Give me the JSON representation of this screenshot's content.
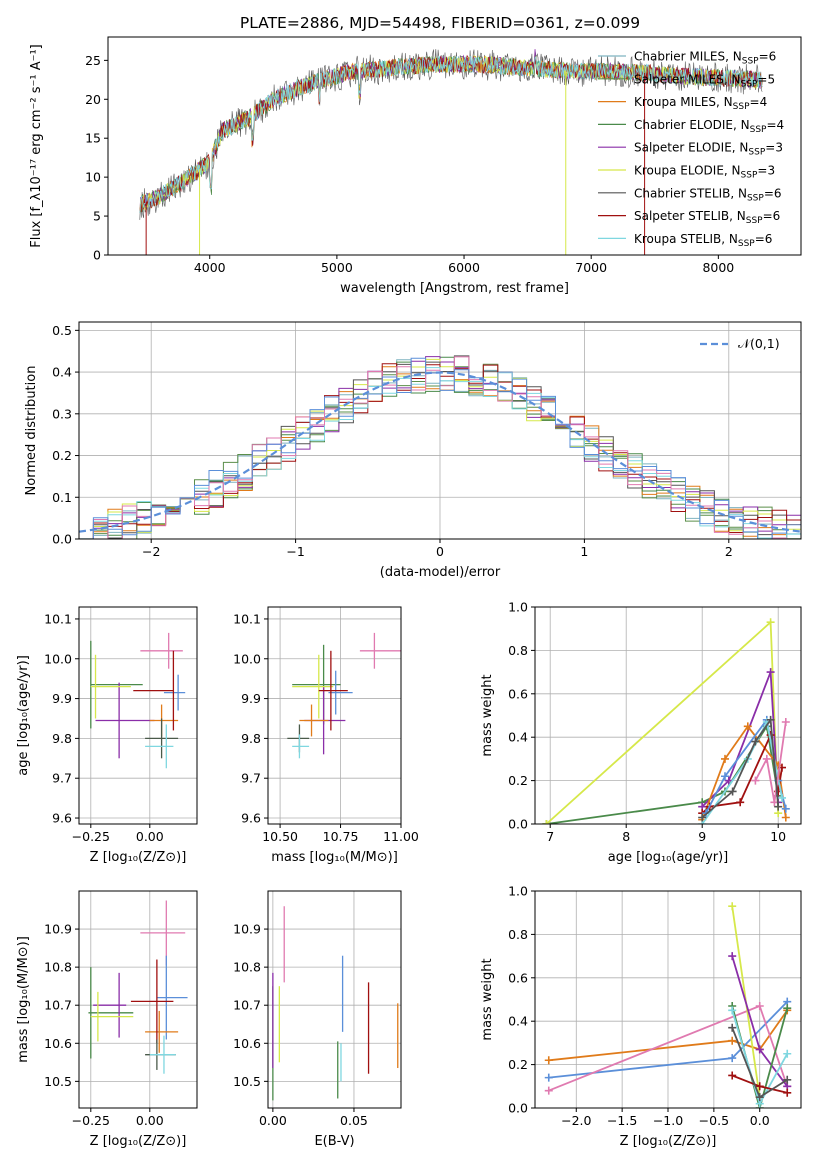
{
  "title": "PLATE=2886, MJD=54498, FIBERID=0361, z=0.099",
  "colors": {
    "chabrier_miles": "#7fb3c0",
    "salpeter_miles": "#5b8f4a",
    "kroupa_miles": "#e07b1a",
    "chabrier_elodie": "#4a8a4a",
    "salpeter_elodie": "#8a2ea8",
    "kroupa_elodie": "#d6e84a",
    "chabrier_stelib": "#555555",
    "salpeter_stelib": "#a01010",
    "kroupa_stelib": "#7fd7e0",
    "gaussian": "#5b8fd9",
    "pink": "#e07ab0",
    "blue": "#5b8fd9"
  },
  "chart_data": [
    {
      "id": "spectrum",
      "type": "line",
      "xlabel": "wavelength [Angstrom, rest frame]",
      "ylabel": "Flux [f_λ10⁻¹⁷ erg cm⁻² s⁻¹ A⁻¹]",
      "xlim": [
        3200,
        8650
      ],
      "ylim": [
        0,
        28
      ],
      "xticks": [
        "4000",
        "5000",
        "6000",
        "7000",
        "8000"
      ],
      "yticks": [
        "0",
        "5",
        "10",
        "15",
        "20",
        "25"
      ],
      "legend": [
        {
          "label": "Chabrier MILES, N",
          "sub": "SSP",
          "tail": "=6",
          "color": "#7fb3c0"
        },
        {
          "label": "Salpeter MILES, N",
          "sub": "SSP",
          "tail": "=5",
          "color": "#5b8f4a"
        },
        {
          "label": "Kroupa MILES, N",
          "sub": "SSP",
          "tail": "=4",
          "color": "#e07b1a"
        },
        {
          "label": "Chabrier ELODIE, N",
          "sub": "SSP",
          "tail": "=4",
          "color": "#4a8a4a"
        },
        {
          "label": "Salpeter ELODIE, N",
          "sub": "SSP",
          "tail": "=3",
          "color": "#8a2ea8"
        },
        {
          "label": "Kroupa ELODIE, N",
          "sub": "SSP",
          "tail": "=3",
          "color": "#d6e84a"
        },
        {
          "label": "Chabrier STELIB, N",
          "sub": "SSP",
          "tail": "=6",
          "color": "#555555"
        },
        {
          "label": "Salpeter STELIB, N",
          "sub": "SSP",
          "tail": "=6",
          "color": "#a01010"
        },
        {
          "label": "Kroupa STELIB, N",
          "sub": "SSP",
          "tail": "=6",
          "color": "#7fd7e0"
        }
      ],
      "continuum": [
        [
          3450,
          6.5
        ],
        [
          3600,
          7.5
        ],
        [
          3800,
          9.5
        ],
        [
          4000,
          12
        ],
        [
          4100,
          16
        ],
        [
          4300,
          17.5
        ],
        [
          4500,
          20
        ],
        [
          4700,
          21.5
        ],
        [
          4900,
          22.5
        ],
        [
          5100,
          23.5
        ],
        [
          5300,
          23.8
        ],
        [
          5500,
          24.2
        ],
        [
          5700,
          24.4
        ],
        [
          5900,
          24.5
        ],
        [
          6100,
          24.5
        ],
        [
          6300,
          24.3
        ],
        [
          6500,
          24.0
        ],
        [
          6700,
          23.8
        ],
        [
          6900,
          23.6
        ],
        [
          7100,
          23.6
        ],
        [
          7300,
          23.5
        ],
        [
          7500,
          23.3
        ],
        [
          7700,
          23.0
        ],
        [
          7900,
          22.8
        ],
        [
          8100,
          22.7
        ],
        [
          8300,
          22.5
        ],
        [
          8350,
          22.4
        ]
      ]
    },
    {
      "id": "residual-hist",
      "type": "histogram",
      "xlabel": "(data-model)/error",
      "ylabel": "Normed distribution",
      "xlim": [
        -2.5,
        2.5
      ],
      "ylim": [
        0,
        0.52
      ],
      "xticks": [
        "−2",
        "−1",
        "0",
        "1",
        "2"
      ],
      "yticks": [
        "0.0",
        "0.1",
        "0.2",
        "0.3",
        "0.4",
        "0.5"
      ],
      "legend": "𝒩(0,1)",
      "sigma": 1
    },
    {
      "id": "age-vs-Z",
      "type": "scatter",
      "xlabel": "Z [log₁₀(Z/Z⊙)]",
      "ylabel": "age  [log₁₀(age/yr)]",
      "xlim": [
        -0.3,
        0.2
      ],
      "ylim": [
        9.585,
        10.13
      ],
      "xticks": [
        "−0.25",
        "0.00"
      ],
      "yticks": [
        "9.6",
        "9.7",
        "9.8",
        "9.9",
        "10.0",
        "10.1"
      ],
      "points": [
        {
          "x": -0.25,
          "y": 9.935,
          "dx": 0.0,
          "dy": 0.22,
          "c": "#4a8a4a",
          "hx": [
            -0.25,
            -0.03
          ]
        },
        {
          "x": -0.13,
          "y": 9.845,
          "dx": 0.0,
          "dy": 0.19,
          "c": "#8a2ea8",
          "hx": [
            -0.23,
            0.02
          ]
        },
        {
          "x": -0.23,
          "y": 9.93,
          "dx": 0,
          "dy": 0.16,
          "c": "#d6e84a",
          "hx": [
            -0.25,
            -0.08
          ]
        },
        {
          "x": 0.08,
          "y": 10.02,
          "dx": 0,
          "dy": 0.09,
          "c": "#e07ab0",
          "hx": [
            -0.04,
            0.14
          ]
        },
        {
          "x": 0.12,
          "y": 9.915,
          "dx": 0,
          "dy": 0.09,
          "c": "#5b8fd9",
          "hx": [
            0.06,
            0.15
          ]
        },
        {
          "x": 0.05,
          "y": 9.845,
          "dx": 0,
          "dy": 0.08,
          "c": "#e07b1a",
          "hx": [
            0.0,
            0.12
          ]
        },
        {
          "x": 0.1,
          "y": 9.92,
          "dx": 0,
          "dy": 0.2,
          "c": "#a01010",
          "hx": [
            -0.07,
            0.1
          ]
        },
        {
          "x": 0.05,
          "y": 9.8,
          "dx": 0,
          "dy": 0.1,
          "c": "#4a5a4a",
          "hx": [
            -0.02,
            0.12
          ]
        },
        {
          "x": 0.07,
          "y": 9.78,
          "dx": 0,
          "dy": 0.11,
          "c": "#7fd7e0",
          "hx": [
            -0.02,
            0.1
          ]
        }
      ]
    },
    {
      "id": "age-vs-mass",
      "type": "scatter",
      "xlabel": "mass [log₁₀(M/M⊙)]",
      "ylim": [
        9.585,
        10.13
      ],
      "xlim": [
        10.45,
        11.0
      ],
      "xticks": [
        "10.50",
        "10.75",
        "11.00"
      ],
      "yticks": [
        "9.6",
        "9.7",
        "9.8",
        "9.9",
        "10.0",
        "10.1"
      ],
      "points": [
        {
          "x": 10.68,
          "y": 9.935,
          "dy": 0.2,
          "c": "#4a8a4a",
          "hx": [
            10.55,
            10.75
          ]
        },
        {
          "x": 10.68,
          "y": 9.845,
          "dy": 0.17,
          "c": "#8a2ea8",
          "hx": [
            10.6,
            10.77
          ]
        },
        {
          "x": 10.66,
          "y": 9.93,
          "dy": 0.16,
          "c": "#d6e84a",
          "hx": [
            10.55,
            10.72
          ]
        },
        {
          "x": 10.89,
          "y": 10.02,
          "dy": 0.09,
          "c": "#e07ab0",
          "hx": [
            10.83,
            11.0
          ]
        },
        {
          "x": 10.73,
          "y": 9.915,
          "dy": 0.11,
          "c": "#5b8fd9",
          "hx": [
            10.7,
            10.8
          ]
        },
        {
          "x": 10.63,
          "y": 9.845,
          "dy": 0.08,
          "c": "#e07b1a",
          "hx": [
            10.58,
            10.7
          ]
        },
        {
          "x": 10.71,
          "y": 9.92,
          "dy": 0.2,
          "c": "#a01010",
          "hx": [
            10.66,
            10.78
          ]
        },
        {
          "x": 10.58,
          "y": 9.8,
          "dy": 0.07,
          "c": "#4a5a4a",
          "hx": [
            10.53,
            10.62
          ]
        },
        {
          "x": 10.58,
          "y": 9.78,
          "dy": 0.06,
          "c": "#7fd7e0",
          "hx": [
            10.55,
            10.62
          ]
        }
      ]
    },
    {
      "id": "weight-vs-age",
      "type": "line",
      "xlabel": "age  [log₁₀(age/yr)]",
      "ylabel": "mass weight",
      "xlim": [
        6.8,
        10.3
      ],
      "ylim": [
        0,
        1
      ],
      "xticks": [
        "7",
        "8",
        "9",
        "10"
      ],
      "yticks": [
        "0.0",
        "0.2",
        "0.4",
        "0.6",
        "0.8",
        "1.0"
      ],
      "series": [
        {
          "c": "#4a8a4a",
          "pts": [
            [
              6.95,
              0.0
            ],
            [
              9.0,
              0.1
            ],
            [
              9.3,
              0.15
            ],
            [
              9.85,
              0.45
            ],
            [
              10.0,
              0.13
            ]
          ]
        },
        {
          "c": "#d6e84a",
          "pts": [
            [
              6.95,
              0.0
            ],
            [
              9.9,
              0.93
            ],
            [
              10.0,
              0.05
            ]
          ]
        },
        {
          "c": "#8a2ea8",
          "pts": [
            [
              9.0,
              0.08
            ],
            [
              9.35,
              0.2
            ],
            [
              9.9,
              0.7
            ],
            [
              10.0,
              0.1
            ]
          ]
        },
        {
          "c": "#e07b1a",
          "pts": [
            [
              9.0,
              0.02
            ],
            [
              9.3,
              0.3
            ],
            [
              9.6,
              0.45
            ],
            [
              10.0,
              0.27
            ],
            [
              10.1,
              0.03
            ]
          ]
        },
        {
          "c": "#a01010",
          "pts": [
            [
              9.0,
              0.05
            ],
            [
              9.1,
              0.08
            ],
            [
              9.5,
              0.1
            ],
            [
              9.9,
              0.41
            ],
            [
              10.0,
              0.15
            ],
            [
              10.05,
              0.26
            ]
          ]
        },
        {
          "c": "#5b8fd9",
          "pts": [
            [
              9.05,
              0.05
            ],
            [
              9.3,
              0.22
            ],
            [
              9.85,
              0.48
            ],
            [
              10.0,
              0.2
            ],
            [
              10.1,
              0.07
            ]
          ]
        },
        {
          "c": "#7fd7e0",
          "pts": [
            [
              9.0,
              0.0
            ],
            [
              9.6,
              0.3
            ],
            [
              9.85,
              0.47
            ],
            [
              10.05,
              0.12
            ]
          ]
        },
        {
          "c": "#e07ab0",
          "pts": [
            [
              9.7,
              0.2
            ],
            [
              9.85,
              0.3
            ],
            [
              9.95,
              0.1
            ],
            [
              10.1,
              0.47
            ]
          ]
        },
        {
          "c": "#555555",
          "pts": [
            [
              9.0,
              0.03
            ],
            [
              9.4,
              0.15
            ],
            [
              9.7,
              0.38
            ],
            [
              9.9,
              0.48
            ],
            [
              10.0,
              0.08
            ]
          ]
        }
      ]
    },
    {
      "id": "mass-vs-Z",
      "type": "scatter",
      "xlabel": "Z [log₁₀(Z/Z⊙)]",
      "ylabel": "mass [log₁₀(M/M⊙)]",
      "xlim": [
        -0.3,
        0.2
      ],
      "ylim": [
        10.43,
        11.0
      ],
      "xticks": [
        "−0.25",
        "0.00"
      ],
      "yticks": [
        "10.5",
        "10.6",
        "10.7",
        "10.8",
        "10.9"
      ],
      "points": [
        {
          "x": -0.25,
          "y": 10.68,
          "dy": 0.24,
          "c": "#4a8a4a",
          "hx": [
            -0.26,
            -0.07
          ]
        },
        {
          "x": -0.13,
          "y": 10.7,
          "dy": 0.17,
          "c": "#8a2ea8",
          "hx": [
            -0.24,
            -0.1
          ]
        },
        {
          "x": -0.22,
          "y": 10.67,
          "dy": 0.13,
          "c": "#d6e84a",
          "hx": [
            -0.25,
            -0.07
          ]
        },
        {
          "x": 0.07,
          "y": 10.89,
          "dy": 0.17,
          "c": "#e07ab0",
          "hx": [
            -0.04,
            0.15
          ]
        },
        {
          "x": 0.07,
          "y": 10.72,
          "dy": 0.22,
          "c": "#5b8fd9",
          "hx": [
            0.03,
            0.16
          ]
        },
        {
          "x": 0.04,
          "y": 10.63,
          "dy": 0.11,
          "c": "#e07b1a",
          "hx": [
            -0.02,
            0.12
          ]
        },
        {
          "x": 0.03,
          "y": 10.71,
          "dy": 0.22,
          "c": "#a01010",
          "hx": [
            -0.08,
            0.1
          ]
        },
        {
          "x": 0.03,
          "y": 10.57,
          "dy": 0.08,
          "c": "#4a5a4a",
          "hx": [
            -0.02,
            0.11
          ]
        },
        {
          "x": 0.06,
          "y": 10.57,
          "dy": 0.1,
          "c": "#7fd7e0",
          "hx": [
            0.0,
            0.11
          ]
        }
      ]
    },
    {
      "id": "mass-vs-EBV",
      "type": "scatter",
      "xlabel": "E(B-V)",
      "xlim": [
        -0.003,
        0.079
      ],
      "ylim": [
        10.43,
        11.0
      ],
      "xticks": [
        "0.00",
        "0.05"
      ],
      "yticks": [
        "10.5",
        "10.6",
        "10.7",
        "10.8",
        "10.9"
      ],
      "points": [
        {
          "x": 0.0,
          "y": 10.6,
          "dy": 0.3,
          "c": "#4a8a4a"
        },
        {
          "x": 0.0,
          "y": 10.66,
          "dy": 0.25,
          "c": "#8a2ea8"
        },
        {
          "x": 0.004,
          "y": 10.65,
          "dy": 0.2,
          "c": "#d6e84a"
        },
        {
          "x": 0.007,
          "y": 10.86,
          "dy": 0.2,
          "c": "#e07ab0"
        },
        {
          "x": 0.04,
          "y": 10.53,
          "dy": 0.15,
          "c": "#4a8a4a"
        },
        {
          "x": 0.042,
          "y": 10.55,
          "dy": 0.1,
          "c": "#7fd7e0"
        },
        {
          "x": 0.043,
          "y": 10.73,
          "dy": 0.2,
          "c": "#5b8fd9"
        },
        {
          "x": 0.059,
          "y": 10.64,
          "dy": 0.24,
          "c": "#a01010"
        },
        {
          "x": 0.077,
          "y": 10.62,
          "dy": 0.17,
          "c": "#e07b1a"
        }
      ]
    },
    {
      "id": "weight-vs-Z",
      "type": "line",
      "xlabel": "Z [log₁₀(Z/Z⊙)]",
      "ylabel": "mass weight",
      "xlim": [
        -2.45,
        0.45
      ],
      "ylim": [
        0,
        1
      ],
      "xticks": [
        "−2.0",
        "−1.5",
        "−1.0",
        "−0.5",
        "0.0"
      ],
      "yticks": [
        "0.0",
        "0.2",
        "0.4",
        "0.6",
        "0.8",
        "1.0"
      ],
      "series": [
        {
          "c": "#e07b1a",
          "pts": [
            [
              -2.3,
              0.22
            ],
            [
              -0.3,
              0.31
            ],
            [
              0.0,
              0.27
            ],
            [
              0.3,
              0.45
            ]
          ]
        },
        {
          "c": "#5b8fd9",
          "pts": [
            [
              -2.3,
              0.14
            ],
            [
              -0.3,
              0.23
            ],
            [
              0.3,
              0.49
            ]
          ]
        },
        {
          "c": "#e07ab0",
          "pts": [
            [
              -2.3,
              0.08
            ],
            [
              0.0,
              0.47
            ],
            [
              0.3,
              0.1
            ]
          ]
        },
        {
          "c": "#d6e84a",
          "pts": [
            [
              -0.3,
              0.93
            ],
            [
              0.0,
              0.05
            ]
          ]
        },
        {
          "c": "#8a2ea8",
          "pts": [
            [
              -0.3,
              0.7
            ],
            [
              0.0,
              0.27
            ],
            [
              0.3,
              0.1
            ]
          ]
        },
        {
          "c": "#4a8a4a",
          "pts": [
            [
              -0.3,
              0.47
            ],
            [
              0.0,
              0.0
            ],
            [
              0.3,
              0.46
            ]
          ]
        },
        {
          "c": "#7fd7e0",
          "pts": [
            [
              -0.3,
              0.45
            ],
            [
              0.0,
              0.02
            ],
            [
              0.3,
              0.25
            ]
          ]
        },
        {
          "c": "#a01010",
          "pts": [
            [
              -0.3,
              0.15
            ],
            [
              0.0,
              0.1
            ],
            [
              0.3,
              0.07
            ]
          ]
        },
        {
          "c": "#555555",
          "pts": [
            [
              -0.3,
              0.37
            ],
            [
              0.0,
              0.05
            ],
            [
              0.3,
              0.13
            ]
          ]
        }
      ]
    }
  ]
}
